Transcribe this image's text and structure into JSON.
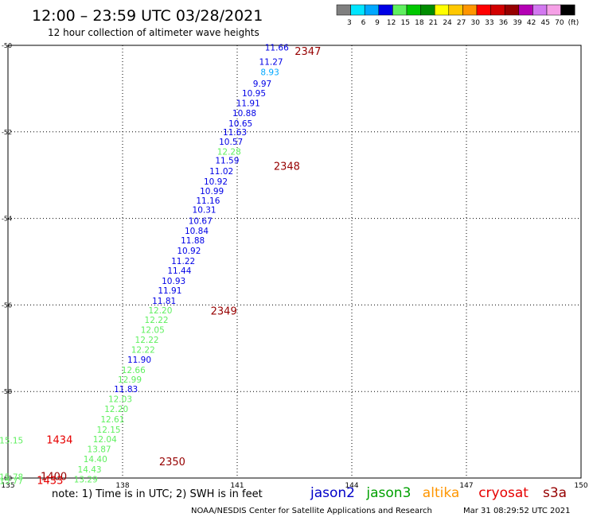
{
  "header": {
    "title": "12:00 – 23:59 UTC 03/28/2021",
    "subtitle": "12 hour collection of altimeter wave heights"
  },
  "scale": {
    "labels": [
      "3",
      "6",
      "9",
      "12",
      "15",
      "18",
      "21",
      "24",
      "27",
      "30",
      "33",
      "36",
      "39",
      "42",
      "45",
      "70",
      "(ft)"
    ],
    "colors": [
      "#7f7f7f",
      "#00e5ff",
      "#00a8ff",
      "#0000e6",
      "#5ff05f",
      "#00c800",
      "#008c00",
      "#ffff00",
      "#ffc800",
      "#ff9600",
      "#ff0000",
      "#d20000",
      "#960000",
      "#b400b4",
      "#d278f0",
      "#f5a0e6",
      "#000000"
    ]
  },
  "chart_data": {
    "type": "scatter",
    "title": "",
    "xlim": [
      135,
      150
    ],
    "ylim": [
      -60,
      -50
    ],
    "x_ticks": [
      "135",
      "138",
      "141",
      "144",
      "147",
      "150"
    ],
    "y_ticks": [
      "-50",
      "-52",
      "-54",
      "-56",
      "-58",
      "-60"
    ],
    "grid": true,
    "points": [
      {
        "lon": 142.35,
        "lat": -50.05,
        "v": "11.66",
        "c": "#0000e6"
      },
      {
        "lon": 142.2,
        "lat": -50.38,
        "v": "11.27",
        "c": "#0000e6"
      },
      {
        "lon": 142.1,
        "lat": -50.62,
        "v": "8.93",
        "c": "#00a8ff"
      },
      {
        "lon": 141.9,
        "lat": -50.88,
        "v": "9.97",
        "c": "#0000e6"
      },
      {
        "lon": 141.75,
        "lat": -51.1,
        "v": "10.95",
        "c": "#0000e6"
      },
      {
        "lon": 141.6,
        "lat": -51.33,
        "v": "11.91",
        "c": "#0000e6"
      },
      {
        "lon": 141.5,
        "lat": -51.56,
        "v": "10.88",
        "c": "#0000e6"
      },
      {
        "lon": 141.4,
        "lat": -51.8,
        "v": "10.65",
        "c": "#0000e6"
      },
      {
        "lon": 141.25,
        "lat": -52.0,
        "v": "11.63",
        "c": "#0000e6"
      },
      {
        "lon": 141.15,
        "lat": -52.22,
        "v": "10.57",
        "c": "#0000e6"
      },
      {
        "lon": 141.1,
        "lat": -52.45,
        "v": "12.28",
        "c": "#5ff05f"
      },
      {
        "lon": 141.05,
        "lat": -52.66,
        "v": "11.59",
        "c": "#0000e6"
      },
      {
        "lon": 140.9,
        "lat": -52.9,
        "v": "11.02",
        "c": "#0000e6"
      },
      {
        "lon": 140.75,
        "lat": -53.14,
        "v": "10.92",
        "c": "#0000e6"
      },
      {
        "lon": 140.65,
        "lat": -53.36,
        "v": "10.99",
        "c": "#0000e6"
      },
      {
        "lon": 140.55,
        "lat": -53.58,
        "v": "11.16",
        "c": "#0000e6"
      },
      {
        "lon": 140.45,
        "lat": -53.8,
        "v": "10.31",
        "c": "#0000e6"
      },
      {
        "lon": 140.35,
        "lat": -54.05,
        "v": "10.67",
        "c": "#0000e6"
      },
      {
        "lon": 140.25,
        "lat": -54.28,
        "v": "10.84",
        "c": "#0000e6"
      },
      {
        "lon": 140.15,
        "lat": -54.5,
        "v": "11.88",
        "c": "#0000e6"
      },
      {
        "lon": 140.05,
        "lat": -54.74,
        "v": "10.92",
        "c": "#0000e6"
      },
      {
        "lon": 139.9,
        "lat": -54.98,
        "v": "11.22",
        "c": "#0000e6"
      },
      {
        "lon": 139.8,
        "lat": -55.2,
        "v": "11.44",
        "c": "#0000e6"
      },
      {
        "lon": 139.65,
        "lat": -55.44,
        "v": "10.93",
        "c": "#0000e6"
      },
      {
        "lon": 139.55,
        "lat": -55.66,
        "v": "11.91",
        "c": "#0000e6"
      },
      {
        "lon": 139.4,
        "lat": -55.9,
        "v": "11.81",
        "c": "#0000e6"
      },
      {
        "lon": 139.3,
        "lat": -56.12,
        "v": "12.20",
        "c": "#5ff05f"
      },
      {
        "lon": 139.2,
        "lat": -56.34,
        "v": "12.22",
        "c": "#5ff05f"
      },
      {
        "lon": 139.1,
        "lat": -56.57,
        "v": "12.05",
        "c": "#5ff05f"
      },
      {
        "lon": 138.95,
        "lat": -56.8,
        "v": "12.22",
        "c": "#5ff05f"
      },
      {
        "lon": 138.85,
        "lat": -57.03,
        "v": "12.22",
        "c": "#5ff05f"
      },
      {
        "lon": 138.75,
        "lat": -57.26,
        "v": "11.90",
        "c": "#0000e6"
      },
      {
        "lon": 138.6,
        "lat": -57.5,
        "v": "12.66",
        "c": "#5ff05f"
      },
      {
        "lon": 138.5,
        "lat": -57.72,
        "v": "12.99",
        "c": "#5ff05f"
      },
      {
        "lon": 138.4,
        "lat": -57.94,
        "v": "11.83",
        "c": "#0000e6"
      },
      {
        "lon": 138.25,
        "lat": -58.17,
        "v": "12.03",
        "c": "#5ff05f"
      },
      {
        "lon": 138.15,
        "lat": -58.4,
        "v": "12.20",
        "c": "#5ff05f"
      },
      {
        "lon": 138.05,
        "lat": -58.64,
        "v": "12.61",
        "c": "#5ff05f"
      },
      {
        "lon": 137.95,
        "lat": -58.88,
        "v": "12.15",
        "c": "#5ff05f"
      },
      {
        "lon": 137.85,
        "lat": -59.1,
        "v": "12.04",
        "c": "#5ff05f"
      },
      {
        "lon": 137.7,
        "lat": -59.33,
        "v": "13.87",
        "c": "#5ff05f"
      },
      {
        "lon": 137.6,
        "lat": -59.56,
        "v": "14.40",
        "c": "#5ff05f"
      },
      {
        "lon": 137.45,
        "lat": -59.8,
        "v": "14.43",
        "c": "#5ff05f"
      },
      {
        "lon": 137.35,
        "lat": -60.03,
        "v": "13.29",
        "c": "#5ff05f"
      },
      {
        "lon": 135.4,
        "lat": -59.13,
        "v": "15.15",
        "c": "#5ff05f"
      },
      {
        "lon": 135.4,
        "lat": -59.97,
        "v": "15.78",
        "c": "#5ff05f"
      },
      {
        "lon": 135.4,
        "lat": -60.06,
        "v": "15.77",
        "c": "#5ff05f"
      }
    ],
    "time_labels": [
      {
        "lon": 142.85,
        "lat": -50.15,
        "t": "2347",
        "c": "#960000"
      },
      {
        "lon": 142.3,
        "lat": -52.8,
        "t": "2348",
        "c": "#960000"
      },
      {
        "lon": 140.65,
        "lat": -56.15,
        "t": "2349",
        "c": "#960000"
      },
      {
        "lon": 139.3,
        "lat": -59.63,
        "t": "2350",
        "c": "#960000"
      },
      {
        "lon": 136.35,
        "lat": -59.13,
        "t": "1434",
        "c": "#e60000"
      },
      {
        "lon": 136.2,
        "lat": -59.97,
        "t": "1400",
        "c": "#960000"
      },
      {
        "lon": 136.1,
        "lat": -60.06,
        "t": "1433",
        "c": "#e60000"
      }
    ]
  },
  "legend": {
    "note": "note: 1) Time is in UTC; 2) SWH is in feet",
    "items": [
      {
        "name": "jason2",
        "color": "#0000c8"
      },
      {
        "name": "jason3",
        "color": "#00a000"
      },
      {
        "name": "altika",
        "color": "#ff9600"
      },
      {
        "name": "cryosat",
        "color": "#e60000"
      },
      {
        "name": "s3a",
        "color": "#960000"
      }
    ]
  },
  "footer": {
    "credit": "NOAA/NESDIS Center for Satellite Applications and Research",
    "timestamp": "Mar 31 08:29:52 UTC 2021"
  }
}
